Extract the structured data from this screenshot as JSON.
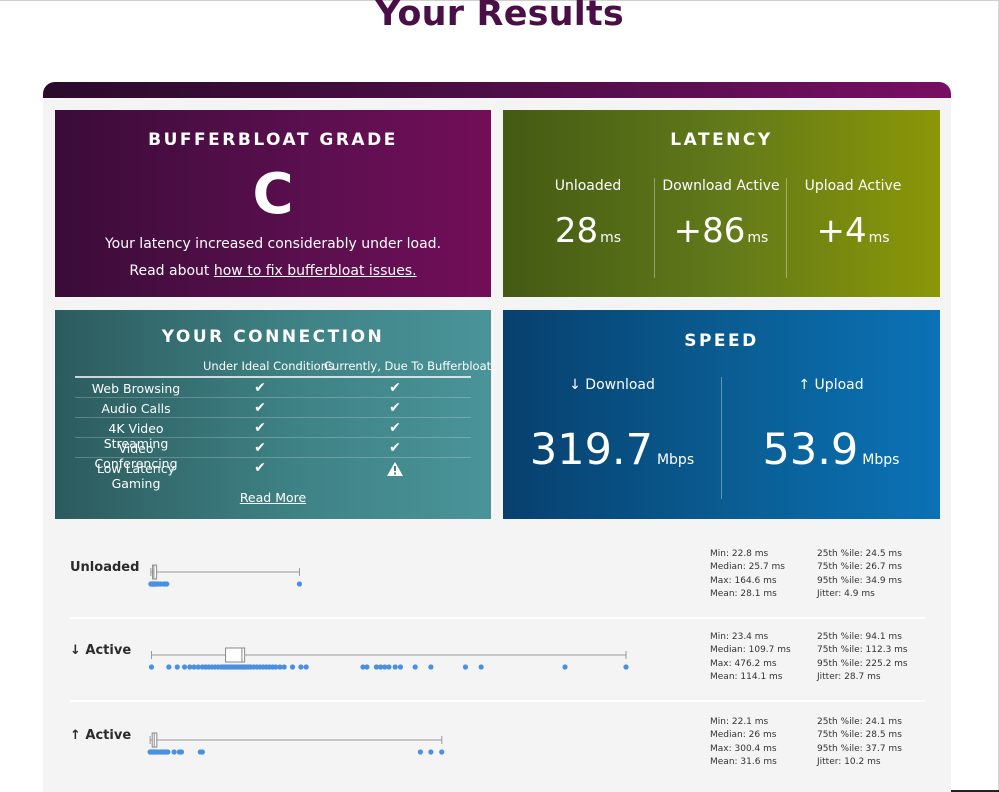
{
  "page_title": "Your Results",
  "grade": {
    "heading": "BUFFERBLOAT GRADE",
    "letter": "C",
    "description": "Your latency increased considerably under load.",
    "link_prefix": "Read about ",
    "link_text": "how to fix bufferbloat issues."
  },
  "latency": {
    "heading": "LATENCY",
    "unit": "ms",
    "columns": [
      {
        "label": "Unloaded",
        "value": "28"
      },
      {
        "label": "Download Active",
        "value": "+86"
      },
      {
        "label": "Upload Active",
        "value": "+4"
      }
    ]
  },
  "connection": {
    "heading": "YOUR CONNECTION",
    "col_ideal": "Under Ideal Conditions",
    "col_current": "Currently, Due To Bufferbloat",
    "rows": [
      {
        "name": "Web Browsing",
        "ideal": "check",
        "current": "check"
      },
      {
        "name": "Audio Calls",
        "ideal": "check",
        "current": "check"
      },
      {
        "name": "4K Video Streaming",
        "ideal": "check",
        "current": "check"
      },
      {
        "name": "Video Conferencing",
        "ideal": "check",
        "current": "check"
      },
      {
        "name": "Low Latency Gaming",
        "ideal": "check",
        "current": "warning"
      }
    ],
    "read_more": "Read More"
  },
  "speed": {
    "heading": "SPEED",
    "unit": "Mbps",
    "download": {
      "label": "↓ Download",
      "value": "319.7"
    },
    "upload": {
      "label": "↑ Upload",
      "value": "53.9"
    }
  },
  "distributions": [
    {
      "label": "Unloaded",
      "stats_left": [
        "Min: 22.8 ms",
        "Median: 25.7 ms",
        "Max: 164.6 ms",
        "Mean: 28.1 ms"
      ],
      "stats_right": [
        "25th %ile: 24.5 ms",
        "75th %ile: 26.7 ms",
        "95th %ile: 34.9 ms",
        "Jitter: 4.9 ms"
      ],
      "box": {
        "min": 22.8,
        "q1": 24.5,
        "median": 25.7,
        "q3": 26.7,
        "max": 164.6
      },
      "samples": [
        22.8,
        23.5,
        24,
        24.5,
        25,
        25.3,
        25.7,
        26,
        26.4,
        26.7,
        27.5,
        28,
        29,
        30.5,
        32,
        34.9,
        36,
        38,
        164.6
      ]
    },
    {
      "label": "↓ Active",
      "stats_left": [
        "Min: 23.4 ms",
        "Median: 109.7 ms",
        "Max: 476.2 ms",
        "Mean: 114.1 ms"
      ],
      "stats_right": [
        "25th %ile: 94.1 ms",
        "75th %ile: 112.3 ms",
        "95th %ile: 225.2 ms",
        "Jitter: 28.7 ms"
      ],
      "box": {
        "min": 23.4,
        "q1": 94.1,
        "median": 109.7,
        "q3": 112.3,
        "max": 476.2
      },
      "samples": [
        23.4,
        40,
        48,
        55,
        60,
        64,
        68,
        72,
        75,
        78,
        81,
        84,
        87,
        90,
        92,
        94.1,
        96,
        98,
        100,
        102,
        104,
        106,
        108,
        109.7,
        111,
        112.3,
        114,
        116,
        118,
        121,
        124,
        127,
        130,
        133,
        136,
        139,
        142,
        146,
        150,
        158,
        166,
        171,
        225.2,
        229,
        238,
        242,
        246,
        250,
        256,
        261,
        275,
        290,
        323,
        338,
        418,
        476.2
      ]
    },
    {
      "label": "↑ Active",
      "stats_left": [
        "Min: 22.1 ms",
        "Median: 26 ms",
        "Max: 300.4 ms",
        "Mean: 31.6 ms"
      ],
      "stats_right": [
        "25th %ile: 24.1 ms",
        "75th %ile: 28.5 ms",
        "95th %ile: 37.7 ms",
        "Jitter: 10.2 ms"
      ],
      "box": {
        "min": 22.1,
        "q1": 24.1,
        "median": 26,
        "q3": 28.5,
        "max": 300.4
      },
      "samples": [
        22.1,
        23,
        24.1,
        25,
        26,
        27,
        28.5,
        30,
        32,
        34,
        36,
        37.7,
        39,
        45,
        50,
        52,
        70,
        72,
        280,
        290,
        300.4
      ]
    }
  ],
  "colors": {
    "title": "#4b0f47",
    "grade_card": "#5c0f4f",
    "latency_card": "#61791a",
    "connection_card": "#3e8285",
    "speed_card": "#0a5e94",
    "sample_dot": "#4a90e2"
  }
}
